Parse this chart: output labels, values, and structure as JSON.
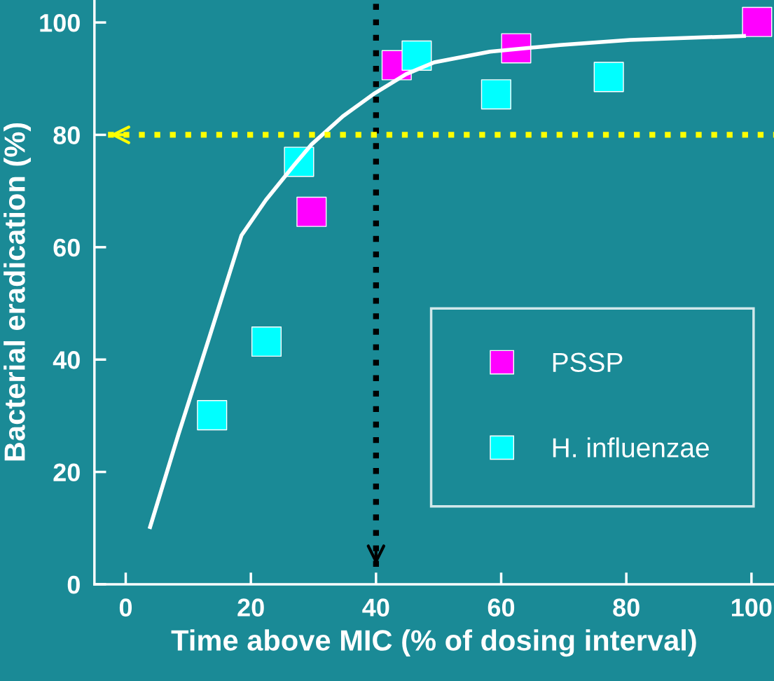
{
  "chart_data": {
    "type": "scatter",
    "xlabel": "Time above MIC (% of dosing interval)",
    "ylabel": "Bacterial eradication (%)",
    "xlim": [
      -5,
      103.6
    ],
    "ylim": [
      0,
      104
    ],
    "xticks": [
      0,
      20,
      40,
      60,
      80,
      100
    ],
    "yticks": [
      0,
      20,
      40,
      60,
      80,
      100
    ],
    "grid": false,
    "legend": "bottom right",
    "series": [
      {
        "name": "PSSP",
        "color": "#ff00ff",
        "marker": "square",
        "x": [
          29.7,
          43.3,
          62.4,
          100.9
        ],
        "values": [
          66.3,
          92.4,
          95.4,
          100.1
        ]
      },
      {
        "name": "H. influenzae",
        "color": "#00ffff",
        "marker": "square",
        "x": [
          13.8,
          22.5,
          27.7,
          46.5,
          59.2,
          77.2
        ],
        "values": [
          30.1,
          43.2,
          75.2,
          94.1,
          87.2,
          90.3
        ]
      },
      {
        "color": "#ffffff",
        "type": "line",
        "x": [
          3.9,
          8.4,
          13.4,
          18.5,
          22.4,
          26.9,
          29.7,
          34.7,
          39.8,
          44.8,
          49.3,
          58.2,
          69.4,
          80.6,
          98.8
        ],
        "values": [
          10.2,
          26.6,
          44.1,
          62.1,
          68.4,
          74.6,
          78.3,
          83.3,
          87.4,
          90.8,
          92.9,
          94.8,
          96.0,
          96.9,
          97.6
        ]
      }
    ],
    "ref_lines": [
      {
        "axis": "x",
        "value": 40,
        "color": "#000000",
        "line_style": "dotted"
      },
      {
        "axis": "y",
        "value": 80,
        "color": "#ffff00",
        "line_style": "dotted"
      }
    ]
  }
}
